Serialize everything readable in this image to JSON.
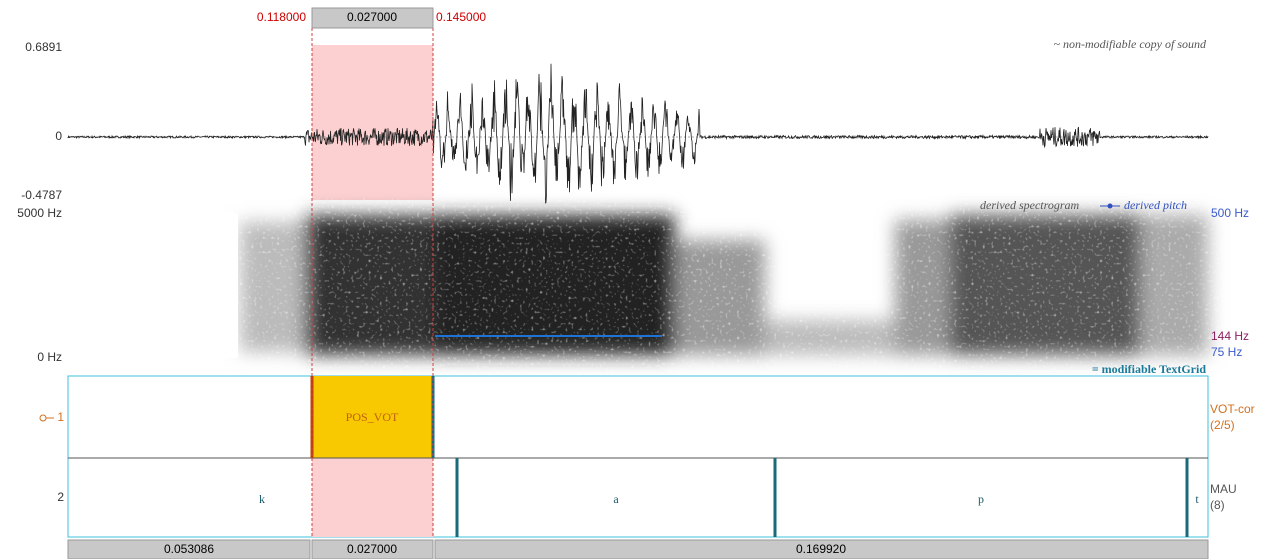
{
  "selection": {
    "start": "0.118000",
    "duration": "0.027000",
    "end": "0.145000"
  },
  "waveform": {
    "max": "0.6891",
    "zero": "0",
    "min": "-0.4787",
    "note": "~ non-modifiable copy of sound"
  },
  "spectrogram": {
    "top": "5000 Hz",
    "bottom": "0 Hz",
    "legend_spectrogram": "derived spectrogram",
    "legend_pitch": "derived pitch",
    "pitch_top": "500 Hz",
    "pitch_value": "144 Hz",
    "pitch_bottom": "75 Hz"
  },
  "textgrid": {
    "note": "= modifiable TextGrid",
    "tiers": [
      {
        "number": "1",
        "name": "VOT-cor",
        "count": "(2/5)",
        "intervals": [
          "POS_VOT"
        ]
      },
      {
        "number": "2",
        "name": "MAU",
        "count": "(8)",
        "intervals": [
          "k",
          "a",
          "p",
          "t"
        ]
      }
    ]
  },
  "durations": [
    "0.053086",
    "0.027000",
    "0.169920"
  ]
}
